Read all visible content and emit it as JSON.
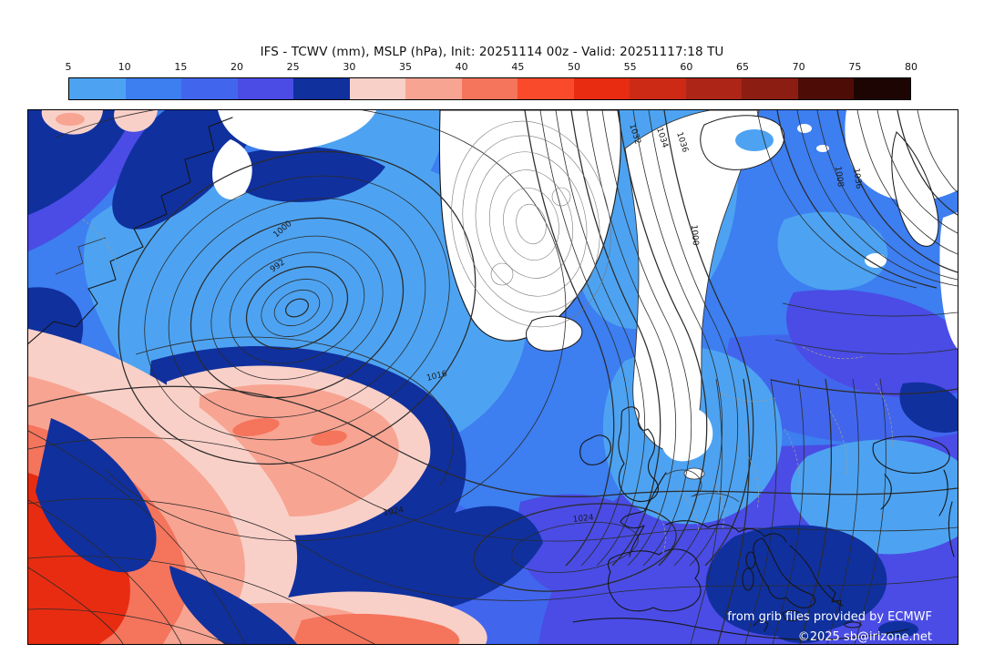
{
  "title": "IFS - TCWV (mm), MSLP (hPa), Init: 20251114 00z - Valid: 20251117:18 TU",
  "colorbar": {
    "tick_labels": [
      "5",
      "10",
      "15",
      "20",
      "25",
      "30",
      "35",
      "40",
      "45",
      "50",
      "55",
      "60",
      "65",
      "70",
      "75",
      "80"
    ],
    "cell_colors": [
      "#4da3f1",
      "#3d7ef0",
      "#4166ed",
      "#4a4ce5",
      "#10309e",
      "#f9d0c8",
      "#f8a492",
      "#f5745c",
      "#f94b2c",
      "#e82c11",
      "#cd2a16",
      "#ad2517",
      "#8c1d12",
      "#4d0d06",
      "#1d0503"
    ],
    "below_min_color": "#ffffff",
    "border_color": "#000000"
  },
  "map": {
    "contour_labels": [
      "992",
      "1000",
      "1016",
      "1024",
      "1024",
      "1032",
      "1034",
      "1036",
      "1000",
      "1008",
      "1036"
    ],
    "attribution": {
      "line1": "from grib files provided by ECMWF",
      "line2": "©2025 sb@irizone.net"
    },
    "isobar_color": "#2b2b2b",
    "coastline_color": "#161616"
  }
}
